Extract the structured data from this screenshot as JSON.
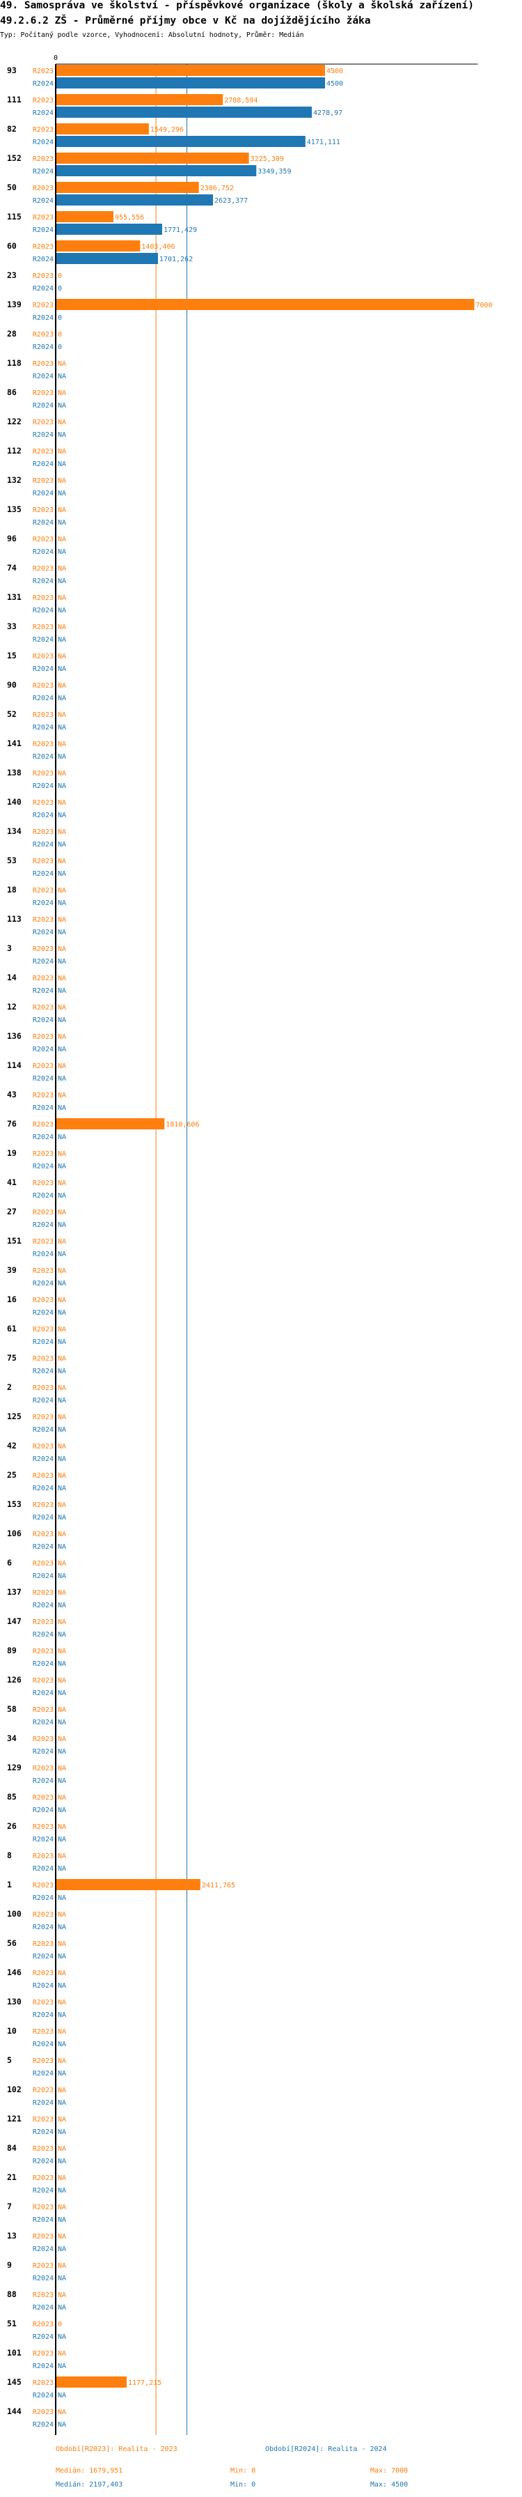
{
  "title_line1": "49. Samospráva ve školství - příspěvkové organizace (školy a školská zařízení)",
  "title_line2": "49.2.6.2 ZŠ - Průměrné příjmy obce v Kč na dojíždějícího žáka",
  "subtitle": "Typ: Počítaný podle vzorce, Vyhodnocení: Absolutní hodnoty, Průměr: Medián",
  "chart_data": {
    "type": "bar",
    "orientation": "horizontal",
    "x_tick_labels": [
      "0"
    ],
    "xlim": [
      0,
      7070
    ],
    "grid": false,
    "colors": {
      "R2023": "#ff7f0e",
      "R2024": "#1f77b4"
    },
    "na_label": "NA",
    "series": [
      {
        "name": "R2023",
        "median": 1679.951
      },
      {
        "name": "R2024",
        "median": 2197.403
      }
    ],
    "groups": [
      {
        "label": "93",
        "R2023": 4500,
        "R2024": 4500
      },
      {
        "label": "111",
        "R2023": 2788.594,
        "R2024": 4278.97
      },
      {
        "label": "82",
        "R2023": 1549.296,
        "R2024": 4171.111
      },
      {
        "label": "152",
        "R2023": 3225.309,
        "R2024": 3349.359
      },
      {
        "label": "50",
        "R2023": 2386.752,
        "R2024": 2623.377
      },
      {
        "label": "115",
        "R2023": 955.556,
        "R2024": 1771.429
      },
      {
        "label": "60",
        "R2023": 1403.406,
        "R2024": 1701.262
      },
      {
        "label": "23",
        "R2023": 0,
        "R2024": 0
      },
      {
        "label": "139",
        "R2023": 7000,
        "R2024": 0
      },
      {
        "label": "28",
        "R2023": 0,
        "R2024": 0
      },
      {
        "label": "118",
        "R2023": null,
        "R2024": null
      },
      {
        "label": "86",
        "R2023": null,
        "R2024": null
      },
      {
        "label": "122",
        "R2023": null,
        "R2024": null
      },
      {
        "label": "112",
        "R2023": null,
        "R2024": null
      },
      {
        "label": "132",
        "R2023": null,
        "R2024": null
      },
      {
        "label": "135",
        "R2023": null,
        "R2024": null
      },
      {
        "label": "96",
        "R2023": null,
        "R2024": null
      },
      {
        "label": "74",
        "R2023": null,
        "R2024": null
      },
      {
        "label": "131",
        "R2023": null,
        "R2024": null
      },
      {
        "label": "33",
        "R2023": null,
        "R2024": null
      },
      {
        "label": "15",
        "R2023": null,
        "R2024": null
      },
      {
        "label": "90",
        "R2023": null,
        "R2024": null
      },
      {
        "label": "52",
        "R2023": null,
        "R2024": null
      },
      {
        "label": "141",
        "R2023": null,
        "R2024": null
      },
      {
        "label": "138",
        "R2023": null,
        "R2024": null
      },
      {
        "label": "140",
        "R2023": null,
        "R2024": null
      },
      {
        "label": "134",
        "R2023": null,
        "R2024": null
      },
      {
        "label": "53",
        "R2023": null,
        "R2024": null
      },
      {
        "label": "18",
        "R2023": null,
        "R2024": null
      },
      {
        "label": "113",
        "R2023": null,
        "R2024": null
      },
      {
        "label": "3",
        "R2023": null,
        "R2024": null
      },
      {
        "label": "14",
        "R2023": null,
        "R2024": null
      },
      {
        "label": "12",
        "R2023": null,
        "R2024": null
      },
      {
        "label": "136",
        "R2023": null,
        "R2024": null
      },
      {
        "label": "114",
        "R2023": null,
        "R2024": null
      },
      {
        "label": "43",
        "R2023": null,
        "R2024": null
      },
      {
        "label": "76",
        "R2023": 1810.606,
        "R2024": null
      },
      {
        "label": "19",
        "R2023": null,
        "R2024": null
      },
      {
        "label": "41",
        "R2023": null,
        "R2024": null
      },
      {
        "label": "27",
        "R2023": null,
        "R2024": null
      },
      {
        "label": "151",
        "R2023": null,
        "R2024": null
      },
      {
        "label": "39",
        "R2023": null,
        "R2024": null
      },
      {
        "label": "16",
        "R2023": null,
        "R2024": null
      },
      {
        "label": "61",
        "R2023": null,
        "R2024": null
      },
      {
        "label": "75",
        "R2023": null,
        "R2024": null
      },
      {
        "label": "2",
        "R2023": null,
        "R2024": null
      },
      {
        "label": "125",
        "R2023": null,
        "R2024": null
      },
      {
        "label": "42",
        "R2023": null,
        "R2024": null
      },
      {
        "label": "25",
        "R2023": null,
        "R2024": null
      },
      {
        "label": "153",
        "R2023": null,
        "R2024": null
      },
      {
        "label": "106",
        "R2023": null,
        "R2024": null
      },
      {
        "label": "6",
        "R2023": null,
        "R2024": null
      },
      {
        "label": "137",
        "R2023": null,
        "R2024": null
      },
      {
        "label": "147",
        "R2023": null,
        "R2024": null
      },
      {
        "label": "89",
        "R2023": null,
        "R2024": null
      },
      {
        "label": "126",
        "R2023": null,
        "R2024": null
      },
      {
        "label": "58",
        "R2023": null,
        "R2024": null
      },
      {
        "label": "34",
        "R2023": null,
        "R2024": null
      },
      {
        "label": "129",
        "R2023": null,
        "R2024": null
      },
      {
        "label": "85",
        "R2023": null,
        "R2024": null
      },
      {
        "label": "26",
        "R2023": null,
        "R2024": null
      },
      {
        "label": "8",
        "R2023": null,
        "R2024": null
      },
      {
        "label": "1",
        "R2023": 2411.765,
        "R2024": null
      },
      {
        "label": "100",
        "R2023": null,
        "R2024": null
      },
      {
        "label": "56",
        "R2023": null,
        "R2024": null
      },
      {
        "label": "146",
        "R2023": null,
        "R2024": null
      },
      {
        "label": "130",
        "R2023": null,
        "R2024": null
      },
      {
        "label": "10",
        "R2023": null,
        "R2024": null
      },
      {
        "label": "5",
        "R2023": null,
        "R2024": null
      },
      {
        "label": "102",
        "R2023": null,
        "R2024": null
      },
      {
        "label": "121",
        "R2023": null,
        "R2024": null
      },
      {
        "label": "84",
        "R2023": null,
        "R2024": null
      },
      {
        "label": "21",
        "R2023": null,
        "R2024": null
      },
      {
        "label": "7",
        "R2023": null,
        "R2024": null
      },
      {
        "label": "13",
        "R2023": null,
        "R2024": null
      },
      {
        "label": "9",
        "R2023": null,
        "R2024": null
      },
      {
        "label": "88",
        "R2023": null,
        "R2024": null
      },
      {
        "label": "51",
        "R2023": 0,
        "R2024": null
      },
      {
        "label": "101",
        "R2023": null,
        "R2024": null
      },
      {
        "label": "145",
        "R2023": 1177.215,
        "R2024": null
      },
      {
        "label": "144",
        "R2023": null,
        "R2024": null
      }
    ]
  },
  "legend": {
    "r2023_title": "Období[R2023]: Realita - 2023",
    "r2024_title": "Období[R2024]: Realita - 2024",
    "r2023_median": "Medián: 1679,951",
    "r2023_min": "Min: 0",
    "r2023_max": "Max: 7000",
    "r2024_median": "Medián: 2197,403",
    "r2024_min": "Min: 0",
    "r2024_max": "Max: 4500"
  }
}
